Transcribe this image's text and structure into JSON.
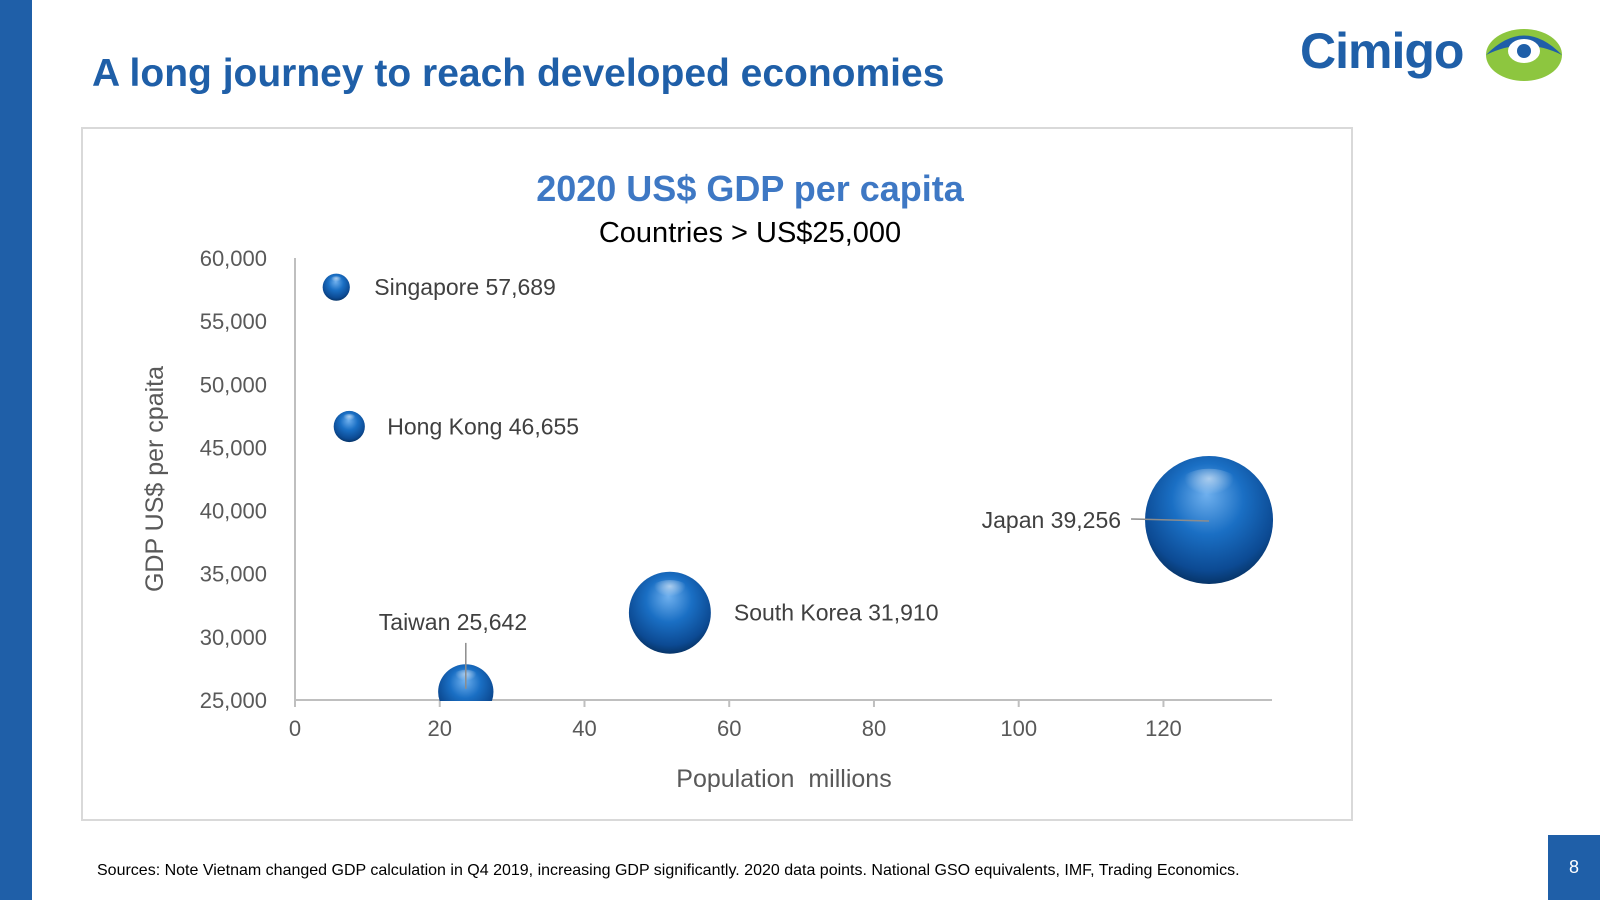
{
  "slide": {
    "title": "A long journey to reach developed economies",
    "logo_text": "Cimigo",
    "footnote": "Sources: Note Vietnam changed GDP calculation in Q4 2019, increasing GDP significantly.  2020 data points. National GSO equivalents, IMF, Trading Economics.",
    "page_number": "8",
    "colors": {
      "brand": "#1f5fa8",
      "chart_title": "#3e78c4",
      "logo_accent": "#8dc63f",
      "bubble": "#1a6fc4"
    }
  },
  "chart_data": {
    "type": "scatter",
    "title": "2020 US$ GDP per capita",
    "subtitle": "Countries > US$25,000",
    "xlabel": "Population  millions",
    "ylabel": "GDP US$ per cpaita",
    "xlim": [
      0,
      135
    ],
    "ylim": [
      25000,
      60000
    ],
    "x_ticks": [
      "0",
      "20",
      "40",
      "60",
      "80",
      "100",
      "120"
    ],
    "y_ticks": [
      "25,000",
      "30,000",
      "35,000",
      "40,000",
      "45,000",
      "50,000",
      "55,000",
      "60,000"
    ],
    "grid": false,
    "legend": "none",
    "points": [
      {
        "name": "Singapore",
        "x": 5.7,
        "y": 57689,
        "label": "Singapore  57,689"
      },
      {
        "name": "Hong Kong",
        "x": 7.5,
        "y": 46655,
        "label": "Hong Kong  46,655"
      },
      {
        "name": "Japan",
        "x": 126.3,
        "y": 39256,
        "label": "Japan  39,256"
      },
      {
        "name": "South Korea",
        "x": 51.8,
        "y": 31910,
        "label": "South Korea  31,910"
      },
      {
        "name": "Taiwan",
        "x": 23.6,
        "y": 25642,
        "label": "Taiwan  25,642"
      }
    ]
  }
}
